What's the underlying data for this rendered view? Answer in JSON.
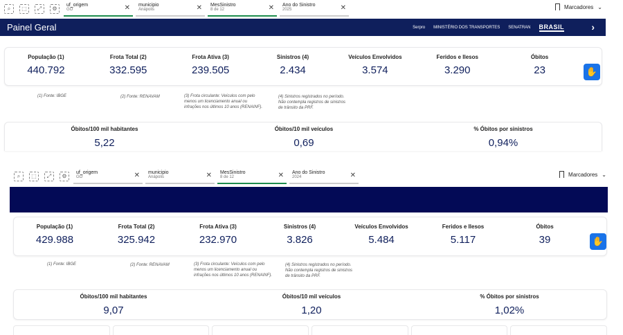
{
  "toolbar_icons": [
    "zoom-icon",
    "select-icon",
    "expand-icon",
    "filter-icon"
  ],
  "bookmarks_label": "Marcadores",
  "panel1": {
    "filters": [
      {
        "name": "uf_origem",
        "value": "GO",
        "active": true
      },
      {
        "name": "municipio",
        "value": "Anápolis",
        "active": false
      },
      {
        "name": "MesSinistro",
        "value": "8 de 12",
        "active": true
      },
      {
        "name": "Ano do Sinistro",
        "value": "2025",
        "active": false
      }
    ],
    "header_title": "Painel Geral",
    "logos": [
      "Serpro",
      "MINISTÉRIO DOS TRANSPORTES",
      "SENATRAN",
      "BRASIL"
    ],
    "kpis": [
      {
        "label": "População (1)",
        "value": "440.792"
      },
      {
        "label": "Frota Total (2)",
        "value": "332.595"
      },
      {
        "label": "Frota Ativa (3)",
        "value": "239.505"
      },
      {
        "label": "Sinistros (4)",
        "value": "2.434"
      },
      {
        "label": "Veículos Envolvidos",
        "value": "3.574"
      },
      {
        "label": "Feridos e Ilesos",
        "value": "3.290"
      },
      {
        "label": "Óbitos",
        "value": "23"
      }
    ],
    "rates": [
      {
        "label": "Óbitos/100 mil habitantes",
        "value": "5,22"
      },
      {
        "label": "Óbitos/10 mil veículos",
        "value": "0,69"
      },
      {
        "label": "% Óbitos por sinistros",
        "value": "0,94%"
      }
    ]
  },
  "panel2": {
    "filters": [
      {
        "name": "uf_origem",
        "value": "GO",
        "active": false
      },
      {
        "name": "municipio",
        "value": "Anápolis",
        "active": false
      },
      {
        "name": "MesSinistro",
        "value": "8 de 12",
        "active": true
      },
      {
        "name": "Ano do Sinistro",
        "value": "2024",
        "active": false
      }
    ],
    "kpis": [
      {
        "label": "População (1)",
        "value": "429.988"
      },
      {
        "label": "Frota Total (2)",
        "value": "325.942"
      },
      {
        "label": "Frota Ativa (3)",
        "value": "232.970"
      },
      {
        "label": "Sinistros (4)",
        "value": "3.826"
      },
      {
        "label": "Veículos Envolvidos",
        "value": "5.484"
      },
      {
        "label": "Feridos e Ilesos",
        "value": "5.117"
      },
      {
        "label": "Óbitos",
        "value": "39"
      }
    ],
    "rates": [
      {
        "label": "Óbitos/100 mil habitantes",
        "value": "9,07"
      },
      {
        "label": "Óbitos/10 mil veículos",
        "value": "1,20"
      },
      {
        "label": "% Óbitos por sinistros",
        "value": "1,02%"
      }
    ]
  },
  "notes": {
    "n1": "(1) Fonte: IBGE",
    "n2": "(2) Fonte: RENAVAM",
    "n3": "(3) Frota circulante: Veículos com pelo menos um licenciamento anual ou infrações nos últimos 10 anos (RENAINF).",
    "n4": "(4) Sinistros registrados no período. Não contempla registros de sinistros de trânsito da PRF."
  }
}
